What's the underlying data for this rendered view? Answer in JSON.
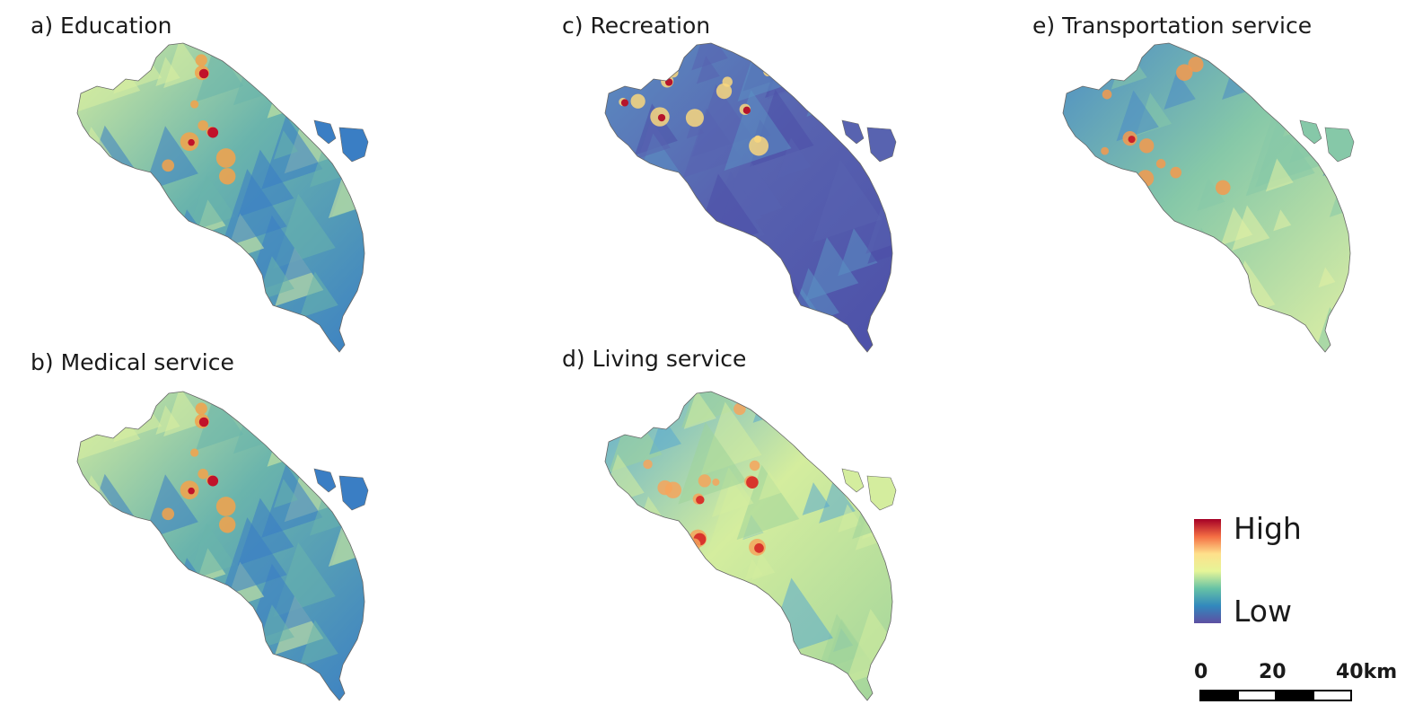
{
  "panels": [
    {
      "id": "a",
      "title": "a) Education",
      "palette": "education"
    },
    {
      "id": "b",
      "title": "b) Medical service",
      "palette": "education"
    },
    {
      "id": "c",
      "title": "c) Recreation",
      "palette": "recreation"
    },
    {
      "id": "d",
      "title": "d) Living service",
      "palette": "living"
    },
    {
      "id": "e",
      "title": "e) Transportation service",
      "palette": "transport"
    }
  ],
  "legend": {
    "high_label": "High",
    "low_label": "Low",
    "colors": [
      "#a50026",
      "#f46d43",
      "#fee08b",
      "#e6f598",
      "#66c2a5",
      "#3288bd",
      "#5e4fa2"
    ]
  },
  "scalebar": {
    "labels": [
      "0",
      "20",
      "40km"
    ]
  }
}
